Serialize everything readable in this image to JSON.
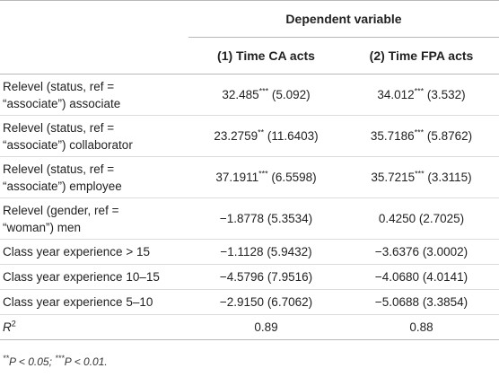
{
  "table": {
    "dependent_header": "Dependent variable",
    "columns": [
      "(1) Time CA acts",
      "(2) Time FPA acts"
    ],
    "rows": [
      {
        "label_line1": "Relevel (status, ref =",
        "label_line2": "“associate”) associate",
        "ca_value": "32.485",
        "ca_stars": "***",
        "ca_se": " (5.092)",
        "fpa_value": "34.012",
        "fpa_stars": "***",
        "fpa_se": " (3.532)"
      },
      {
        "label_line1": "Relevel (status, ref =",
        "label_line2": "“associate”) collaborator",
        "ca_value": "23.2759",
        "ca_stars": "**",
        "ca_se": " (11.6403)",
        "fpa_value": "35.7186",
        "fpa_stars": "***",
        "fpa_se": " (5.8762)"
      },
      {
        "label_line1": "Relevel (status, ref =",
        "label_line2": "“associate”) employee",
        "ca_value": "37.1911",
        "ca_stars": "***",
        "ca_se": " (6.5598)",
        "fpa_value": "35.7215",
        "fpa_stars": "***",
        "fpa_se": " (3.3115)"
      },
      {
        "label_line1": "Relevel (gender, ref =",
        "label_line2": "“woman”) men",
        "ca_value": "−1.8778",
        "ca_stars": "",
        "ca_se": " (5.3534)",
        "fpa_value": "0.4250",
        "fpa_stars": "",
        "fpa_se": " (2.7025)"
      },
      {
        "label_line1": "Class year experience > 15",
        "ca_value": "−1.1128",
        "ca_stars": "",
        "ca_se": " (5.9432)",
        "fpa_value": "−3.6376",
        "fpa_stars": "",
        "fpa_se": " (3.0002)"
      },
      {
        "label_line1": "Class year experience 10–15",
        "ca_value": "−4.5796",
        "ca_stars": "",
        "ca_se": " (7.9516)",
        "fpa_value": "−4.0680",
        "fpa_stars": "",
        "fpa_se": " (4.0141)"
      },
      {
        "label_line1": "Class year experience 5–10",
        "ca_value": "−2.9150",
        "ca_stars": "",
        "ca_se": " (6.7062)",
        "fpa_value": "−5.0688",
        "fpa_stars": "",
        "fpa_se": " (3.3854)"
      }
    ],
    "r_squared": {
      "label_base": "R",
      "label_sup": "2",
      "ca_value": "0.89",
      "fpa_value": "0.88"
    }
  },
  "footnote": {
    "sig2": "**",
    "part2": "P < 0.05; ",
    "sig3": "***",
    "part3": "P < 0.01."
  }
}
